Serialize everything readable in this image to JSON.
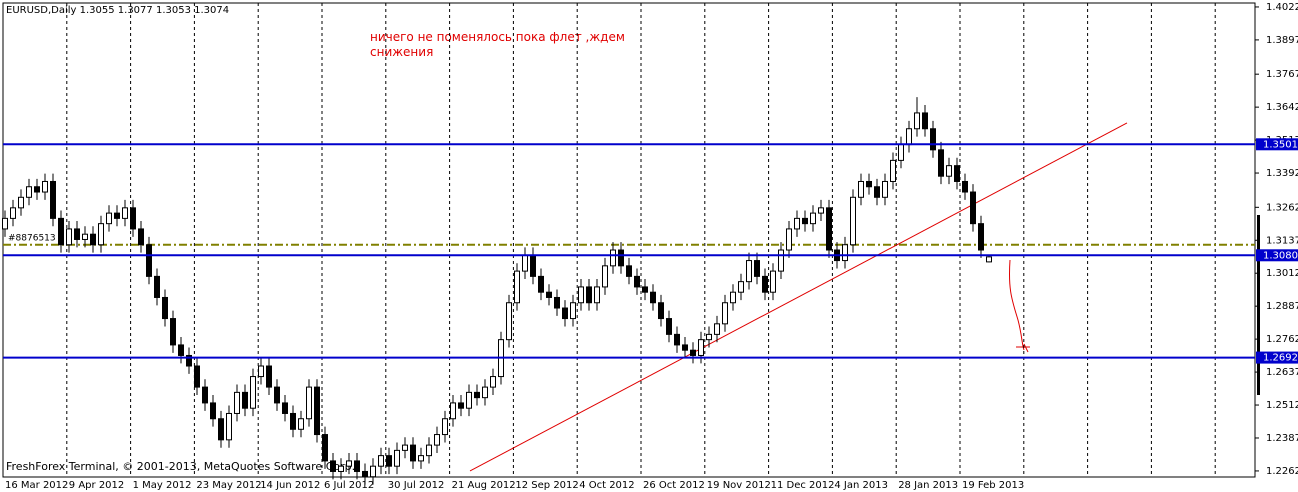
{
  "chart_data": {
    "type": "candlestick",
    "title": "EURUSD,Daily  1.3055 1.3077 1.3053 1.3074",
    "annotation": "ничего не поменялось пока флет ,ждем снижения",
    "footer": "FreshForex Terminal, © 2001-2013, MetaQuotes Software Corp.",
    "side_label": "#8876513",
    "ylim": [
      1.2239,
      1.4037
    ],
    "yticks": [
      1.4022,
      1.3897,
      1.3767,
      1.3642,
      1.3517,
      1.3392,
      1.3262,
      1.3137,
      1.3012,
      1.2887,
      1.2762,
      1.2637,
      1.2512,
      1.2387,
      1.2262
    ],
    "xtick_labels": [
      "16 Mar 2012",
      "9 Apr 2012",
      "1 May 2012",
      "23 May 2012",
      "14 Jun 2012",
      "6 Jul 2012",
      "30 Jul 2012",
      "21 Aug 2012",
      "12 Sep 2012",
      "4 Oct 2012",
      "26 Oct 2012",
      "19 Nov 2012",
      "11 Dec 2012",
      "4 Jan 2013",
      "28 Jan 2013",
      "19 Feb 2013"
    ],
    "levels": [
      {
        "value": 1.3501,
        "label": "1.3501"
      },
      {
        "value": 1.308,
        "label": "1.3080"
      },
      {
        "value": 1.2692,
        "label": "1.2692"
      }
    ],
    "level_color": "#0000cc",
    "dash_level": 1.312,
    "dash_level_color": "#808000",
    "trend_line": [
      1.2262,
      1.3582
    ],
    "trend_color": "#e00000",
    "candles": [
      [
        1.318,
        1.325,
        1.315,
        1.322
      ],
      [
        1.322,
        1.329,
        1.319,
        1.326
      ],
      [
        1.326,
        1.333,
        1.323,
        1.33
      ],
      [
        1.33,
        1.337,
        1.327,
        1.334
      ],
      [
        1.334,
        1.337,
        1.329,
        1.332
      ],
      [
        1.332,
        1.339,
        1.329,
        1.336
      ],
      [
        1.336,
        1.339,
        1.319,
        1.322
      ],
      [
        1.322,
        1.325,
        1.309,
        1.312
      ],
      [
        1.312,
        1.321,
        1.309,
        1.318
      ],
      [
        1.318,
        1.321,
        1.311,
        1.314
      ],
      [
        1.314,
        1.319,
        1.311,
        1.316
      ],
      [
        1.316,
        1.319,
        1.309,
        1.312
      ],
      [
        1.312,
        1.323,
        1.309,
        1.32
      ],
      [
        1.32,
        1.327,
        1.317,
        1.324
      ],
      [
        1.324,
        1.327,
        1.319,
        1.322
      ],
      [
        1.322,
        1.329,
        1.319,
        1.326
      ],
      [
        1.326,
        1.329,
        1.315,
        1.318
      ],
      [
        1.318,
        1.321,
        1.309,
        1.312
      ],
      [
        1.312,
        1.315,
        1.297,
        1.3
      ],
      [
        1.3,
        1.303,
        1.289,
        1.292
      ],
      [
        1.292,
        1.295,
        1.281,
        1.284
      ],
      [
        1.284,
        1.287,
        1.271,
        1.274
      ],
      [
        1.274,
        1.277,
        1.267,
        1.27
      ],
      [
        1.27,
        1.273,
        1.263,
        1.266
      ],
      [
        1.266,
        1.269,
        1.255,
        1.258
      ],
      [
        1.258,
        1.261,
        1.249,
        1.252
      ],
      [
        1.252,
        1.255,
        1.243,
        1.246
      ],
      [
        1.246,
        1.249,
        1.235,
        1.238
      ],
      [
        1.238,
        1.251,
        1.235,
        1.248
      ],
      [
        1.248,
        1.259,
        1.245,
        1.256
      ],
      [
        1.256,
        1.259,
        1.247,
        1.25
      ],
      [
        1.25,
        1.265,
        1.247,
        1.262
      ],
      [
        1.262,
        1.269,
        1.259,
        1.266
      ],
      [
        1.266,
        1.269,
        1.255,
        1.258
      ],
      [
        1.258,
        1.261,
        1.249,
        1.252
      ],
      [
        1.252,
        1.255,
        1.245,
        1.248
      ],
      [
        1.248,
        1.251,
        1.239,
        1.242
      ],
      [
        1.242,
        1.249,
        1.239,
        1.246
      ],
      [
        1.246,
        1.261,
        1.243,
        1.258
      ],
      [
        1.258,
        1.261,
        1.237,
        1.24
      ],
      [
        1.24,
        1.243,
        1.227,
        1.23
      ],
      [
        1.23,
        1.233,
        1.223,
        1.226
      ],
      [
        1.226,
        1.231,
        1.223,
        1.228
      ],
      [
        1.228,
        1.233,
        1.225,
        1.23
      ],
      [
        1.23,
        1.233,
        1.223,
        1.226
      ],
      [
        1.226,
        1.229,
        1.221,
        1.224
      ],
      [
        1.224,
        1.231,
        1.221,
        1.228
      ],
      [
        1.228,
        1.235,
        1.225,
        1.232
      ],
      [
        1.232,
        1.235,
        1.225,
        1.228
      ],
      [
        1.228,
        1.237,
        1.225,
        1.234
      ],
      [
        1.234,
        1.239,
        1.231,
        1.236
      ],
      [
        1.236,
        1.239,
        1.227,
        1.23
      ],
      [
        1.23,
        1.235,
        1.227,
        1.232
      ],
      [
        1.232,
        1.239,
        1.229,
        1.236
      ],
      [
        1.236,
        1.243,
        1.233,
        1.24
      ],
      [
        1.24,
        1.249,
        1.237,
        1.246
      ],
      [
        1.246,
        1.255,
        1.243,
        1.252
      ],
      [
        1.252,
        1.255,
        1.247,
        1.25
      ],
      [
        1.25,
        1.259,
        1.247,
        1.256
      ],
      [
        1.256,
        1.259,
        1.251,
        1.254
      ],
      [
        1.254,
        1.261,
        1.251,
        1.258
      ],
      [
        1.258,
        1.265,
        1.255,
        1.262
      ],
      [
        1.262,
        1.279,
        1.259,
        1.276
      ],
      [
        1.276,
        1.293,
        1.273,
        1.29
      ],
      [
        1.29,
        1.305,
        1.287,
        1.302
      ],
      [
        1.302,
        1.311,
        1.299,
        1.308
      ],
      [
        1.308,
        1.311,
        1.297,
        1.3
      ],
      [
        1.3,
        1.303,
        1.291,
        1.294
      ],
      [
        1.294,
        1.297,
        1.289,
        1.292
      ],
      [
        1.292,
        1.295,
        1.285,
        1.288
      ],
      [
        1.288,
        1.291,
        1.281,
        1.284
      ],
      [
        1.284,
        1.293,
        1.281,
        1.29
      ],
      [
        1.29,
        1.299,
        1.287,
        1.296
      ],
      [
        1.296,
        1.299,
        1.287,
        1.29
      ],
      [
        1.29,
        1.299,
        1.287,
        1.296
      ],
      [
        1.296,
        1.307,
        1.293,
        1.304
      ],
      [
        1.304,
        1.313,
        1.301,
        1.31
      ],
      [
        1.31,
        1.313,
        1.301,
        1.304
      ],
      [
        1.304,
        1.307,
        1.297,
        1.3
      ],
      [
        1.3,
        1.303,
        1.293,
        1.296
      ],
      [
        1.296,
        1.299,
        1.291,
        1.294
      ],
      [
        1.294,
        1.297,
        1.287,
        1.29
      ],
      [
        1.29,
        1.293,
        1.281,
        1.284
      ],
      [
        1.284,
        1.287,
        1.275,
        1.278
      ],
      [
        1.278,
        1.281,
        1.271,
        1.274
      ],
      [
        1.274,
        1.277,
        1.269,
        1.272
      ],
      [
        1.272,
        1.275,
        1.267,
        1.27
      ],
      [
        1.27,
        1.279,
        1.267,
        1.276
      ],
      [
        1.276,
        1.281,
        1.273,
        1.278
      ],
      [
        1.278,
        1.285,
        1.275,
        1.282
      ],
      [
        1.282,
        1.293,
        1.279,
        1.29
      ],
      [
        1.29,
        1.297,
        1.287,
        1.294
      ],
      [
        1.294,
        1.301,
        1.291,
        1.298
      ],
      [
        1.298,
        1.309,
        1.295,
        1.306
      ],
      [
        1.306,
        1.309,
        1.297,
        1.3
      ],
      [
        1.3,
        1.303,
        1.291,
        1.294
      ],
      [
        1.294,
        1.305,
        1.291,
        1.302
      ],
      [
        1.302,
        1.313,
        1.299,
        1.31
      ],
      [
        1.31,
        1.321,
        1.307,
        1.318
      ],
      [
        1.318,
        1.325,
        1.315,
        1.322
      ],
      [
        1.322,
        1.325,
        1.317,
        1.32
      ],
      [
        1.32,
        1.327,
        1.317,
        1.324
      ],
      [
        1.324,
        1.329,
        1.321,
        1.326
      ],
      [
        1.326,
        1.329,
        1.307,
        1.31
      ],
      [
        1.31,
        1.313,
        1.303,
        1.306
      ],
      [
        1.306,
        1.315,
        1.303,
        1.312
      ],
      [
        1.312,
        1.333,
        1.309,
        1.33
      ],
      [
        1.33,
        1.339,
        1.327,
        1.336
      ],
      [
        1.336,
        1.339,
        1.331,
        1.334
      ],
      [
        1.334,
        1.337,
        1.327,
        1.33
      ],
      [
        1.33,
        1.339,
        1.327,
        1.336
      ],
      [
        1.336,
        1.347,
        1.333,
        1.344
      ],
      [
        1.344,
        1.353,
        1.341,
        1.35
      ],
      [
        1.35,
        1.359,
        1.347,
        1.356
      ],
      [
        1.356,
        1.368,
        1.353,
        1.362
      ],
      [
        1.362,
        1.365,
        1.353,
        1.356
      ],
      [
        1.356,
        1.359,
        1.345,
        1.348
      ],
      [
        1.348,
        1.351,
        1.335,
        1.338
      ],
      [
        1.338,
        1.345,
        1.335,
        1.342
      ],
      [
        1.342,
        1.345,
        1.333,
        1.336
      ],
      [
        1.336,
        1.339,
        1.329,
        1.332
      ],
      [
        1.332,
        1.335,
        1.317,
        1.32
      ],
      [
        1.32,
        1.323,
        1.307,
        1.31
      ],
      [
        1.3055,
        1.3077,
        1.3053,
        1.3074
      ]
    ]
  }
}
